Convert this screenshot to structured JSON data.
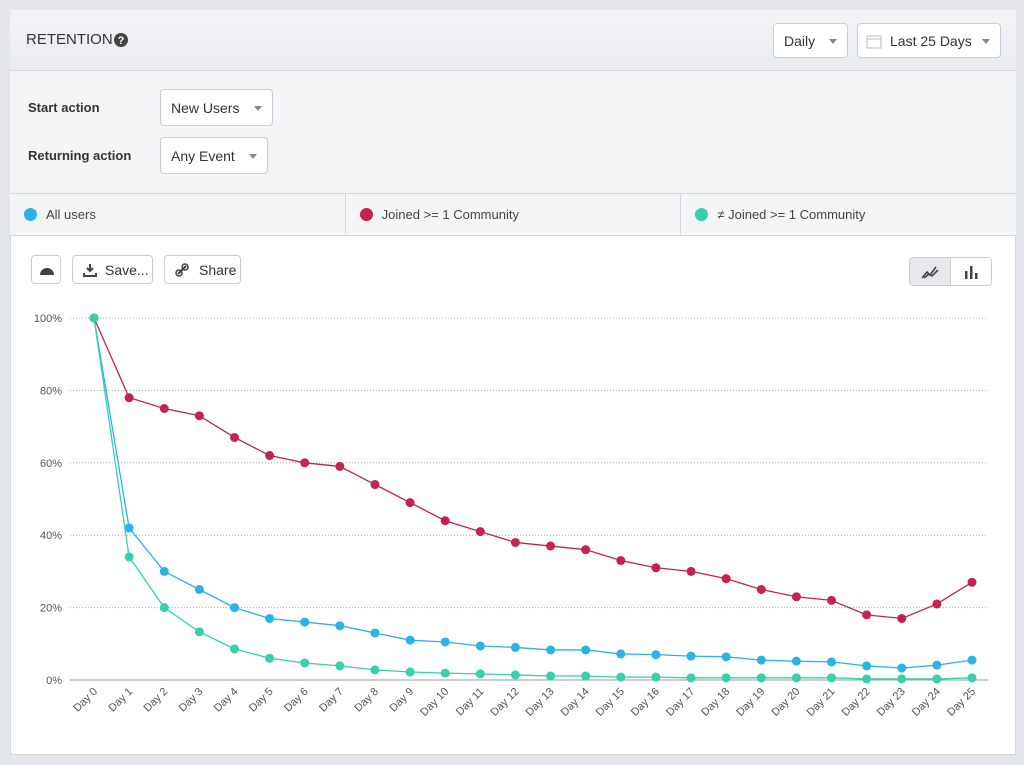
{
  "header": {
    "title": "RETENTION",
    "interval": "Daily",
    "range": "Last 25 Days"
  },
  "filters": {
    "start_label": "Start action",
    "start_value": "New Users",
    "return_label": "Returning action",
    "return_value": "Any Event"
  },
  "toolbar": {
    "save": "Save...",
    "share": "Share"
  },
  "chart_data": {
    "type": "line",
    "categories": [
      "Day 0",
      "Day 1",
      "Day 2",
      "Day 3",
      "Day 4",
      "Day 5",
      "Day 6",
      "Day 7",
      "Day 8",
      "Day 9",
      "Day 10",
      "Day 11",
      "Day 12",
      "Day 13",
      "Day 14",
      "Day 15",
      "Day 16",
      "Day 17",
      "Day 18",
      "Day 19",
      "Day 20",
      "Day 21",
      "Day 22",
      "Day 23",
      "Day 24",
      "Day 25"
    ],
    "series": [
      {
        "name": "All users",
        "color": "#2bb3e6",
        "values": [
          100,
          42,
          30,
          25,
          20,
          17,
          16,
          15,
          13,
          11,
          10.5,
          9.4,
          9,
          8.3,
          8.3,
          7.2,
          7,
          6.6,
          6.4,
          5.5,
          5.2,
          5,
          3.9,
          3.3,
          4.1,
          5.5
        ]
      },
      {
        "name": "Joined >= 1 Community",
        "color": "#c5234d",
        "values": [
          100,
          78,
          75,
          73,
          67,
          62,
          60,
          59,
          54,
          49,
          44,
          41,
          38,
          37,
          36,
          33,
          31,
          30,
          28,
          25,
          23,
          22,
          18,
          17,
          21,
          27
        ]
      },
      {
        "name": "≠ Joined >= 1 Community",
        "color": "#36d0ad",
        "values": [
          100,
          34,
          20,
          13.3,
          8.6,
          6,
          4.7,
          3.9,
          2.8,
          2.2,
          1.9,
          1.7,
          1.4,
          1.1,
          1.1,
          0.8,
          0.8,
          0.6,
          0.6,
          0.6,
          0.6,
          0.6,
          0.3,
          0.3,
          0.3,
          0.6
        ]
      }
    ],
    "ylim": [
      0,
      100
    ],
    "yticks": [
      {
        "value": 0,
        "label": "0%"
      },
      {
        "value": 20,
        "label": "20%"
      },
      {
        "value": 40,
        "label": "40%"
      },
      {
        "value": 60,
        "label": "60%"
      },
      {
        "value": 80,
        "label": "80%"
      },
      {
        "value": 100,
        "label": "100%"
      }
    ],
    "grid": true
  }
}
